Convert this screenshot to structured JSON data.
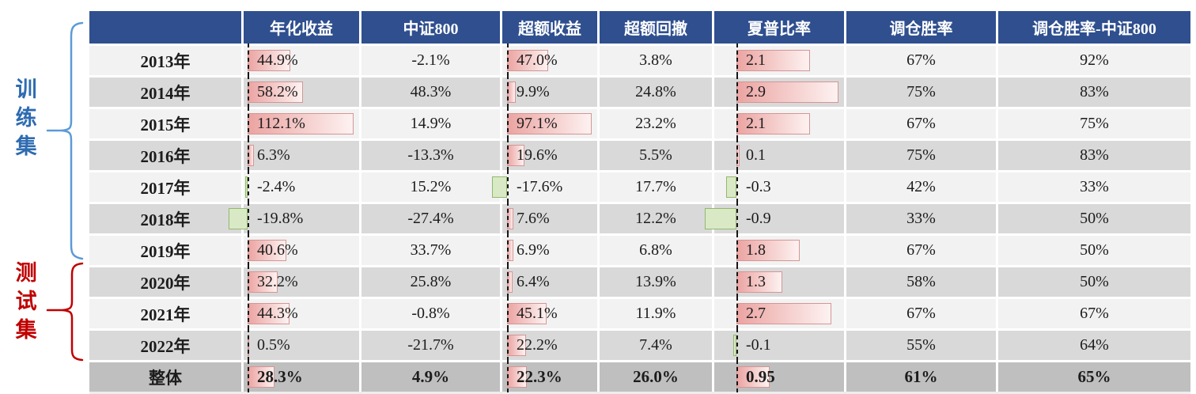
{
  "groups": {
    "train_label": "训练集",
    "test_label": "测试集"
  },
  "colors": {
    "header_bg": "#2f4f8f",
    "row_light": "#f2f2f2",
    "row_mid": "#d9d9d9",
    "row_total": "#bfbfbf",
    "bar_pink": "#eba4a2",
    "bar_pink_light": "#fdf2f1",
    "bar_pink_border": "#d49694",
    "bar_green": "#d9e9c6",
    "bar_green_border": "#94b86e",
    "train_color": "#2e6bb0",
    "test_color": "#c00000",
    "brace_blue": "#5b9bd5",
    "brace_red": "#c00000"
  },
  "chart_data": {
    "type": "table",
    "year_header": "",
    "columns": [
      {
        "label": "年化收益",
        "bar": true
      },
      {
        "label": "中证800",
        "bar": false
      },
      {
        "label": "超额收益",
        "bar": true
      },
      {
        "label": "超额回撤",
        "bar": false
      },
      {
        "label": "夏普比率",
        "bar": true
      },
      {
        "label": "调仓胜率",
        "bar": false
      },
      {
        "label": "调仓胜率-中证800",
        "bar": false
      }
    ],
    "rows": [
      {
        "year": "2013年",
        "group": "训练集",
        "cells": [
          {
            "t": "44.9%",
            "v": 44.9
          },
          {
            "t": "-2.1%"
          },
          {
            "t": "47.0%",
            "v": 47.0
          },
          {
            "t": "3.8%"
          },
          {
            "t": "2.1",
            "v": 2.1
          },
          {
            "t": "67%"
          },
          {
            "t": "92%"
          }
        ]
      },
      {
        "year": "2014年",
        "group": "训练集",
        "cells": [
          {
            "t": "58.2%",
            "v": 58.2
          },
          {
            "t": "48.3%"
          },
          {
            "t": "9.9%",
            "v": 9.9
          },
          {
            "t": "24.8%"
          },
          {
            "t": "2.9",
            "v": 2.9
          },
          {
            "t": "75%"
          },
          {
            "t": "83%"
          }
        ]
      },
      {
        "year": "2015年",
        "group": "训练集",
        "cells": [
          {
            "t": "112.1%",
            "v": 112.1
          },
          {
            "t": "14.9%"
          },
          {
            "t": "97.1%",
            "v": 97.1
          },
          {
            "t": "23.2%"
          },
          {
            "t": "2.1",
            "v": 2.1
          },
          {
            "t": "67%"
          },
          {
            "t": "75%"
          }
        ]
      },
      {
        "year": "2016年",
        "group": "训练集",
        "cells": [
          {
            "t": "6.3%",
            "v": 6.3
          },
          {
            "t": "-13.3%"
          },
          {
            "t": "19.6%",
            "v": 19.6
          },
          {
            "t": "5.5%"
          },
          {
            "t": "0.1",
            "v": 0.1
          },
          {
            "t": "75%"
          },
          {
            "t": "83%"
          }
        ]
      },
      {
        "year": "2017年",
        "group": "训练集",
        "cells": [
          {
            "t": "-2.4%",
            "v": -2.4
          },
          {
            "t": "15.2%"
          },
          {
            "t": "-17.6%",
            "v": -17.6
          },
          {
            "t": "17.7%"
          },
          {
            "t": "-0.3",
            "v": -0.3
          },
          {
            "t": "42%"
          },
          {
            "t": "33%"
          }
        ]
      },
      {
        "year": "2018年",
        "group": "训练集",
        "cells": [
          {
            "t": "-19.8%",
            "v": -19.8
          },
          {
            "t": "-27.4%"
          },
          {
            "t": "7.6%",
            "v": 7.6
          },
          {
            "t": "12.2%"
          },
          {
            "t": "-0.9",
            "v": -0.9
          },
          {
            "t": "33%"
          },
          {
            "t": "50%"
          }
        ]
      },
      {
        "year": "2019年",
        "group": "训练集",
        "cells": [
          {
            "t": "40.6%",
            "v": 40.6
          },
          {
            "t": "33.7%"
          },
          {
            "t": "6.9%",
            "v": 6.9
          },
          {
            "t": "6.8%"
          },
          {
            "t": "1.8",
            "v": 1.8
          },
          {
            "t": "67%"
          },
          {
            "t": "50%"
          }
        ]
      },
      {
        "year": "2020年",
        "group": "测试集",
        "cells": [
          {
            "t": "32.2%",
            "v": 32.2
          },
          {
            "t": "25.8%"
          },
          {
            "t": "6.4%",
            "v": 6.4
          },
          {
            "t": "13.9%"
          },
          {
            "t": "1.3",
            "v": 1.3
          },
          {
            "t": "58%"
          },
          {
            "t": "50%"
          }
        ]
      },
      {
        "year": "2021年",
        "group": "测试集",
        "cells": [
          {
            "t": "44.3%",
            "v": 44.3
          },
          {
            "t": "-0.8%"
          },
          {
            "t": "45.1%",
            "v": 45.1
          },
          {
            "t": "11.9%"
          },
          {
            "t": "2.7",
            "v": 2.7
          },
          {
            "t": "67%"
          },
          {
            "t": "67%"
          }
        ]
      },
      {
        "year": "2022年",
        "group": "测试集",
        "cells": [
          {
            "t": "0.5%",
            "v": 0.5
          },
          {
            "t": "-21.7%"
          },
          {
            "t": "22.2%",
            "v": 22.2
          },
          {
            "t": "7.4%"
          },
          {
            "t": "-0.1",
            "v": -0.1
          },
          {
            "t": "55%"
          },
          {
            "t": "64%"
          }
        ]
      },
      {
        "year": "整体",
        "group": "整体",
        "total": true,
        "cells": [
          {
            "t": "28.3%",
            "v": 28.3
          },
          {
            "t": "4.9%"
          },
          {
            "t": "22.3%",
            "v": 22.3
          },
          {
            "t": "26.0%"
          },
          {
            "t": "0.95",
            "v": 0.95
          },
          {
            "t": "61%"
          },
          {
            "t": "65%"
          }
        ]
      }
    ]
  }
}
